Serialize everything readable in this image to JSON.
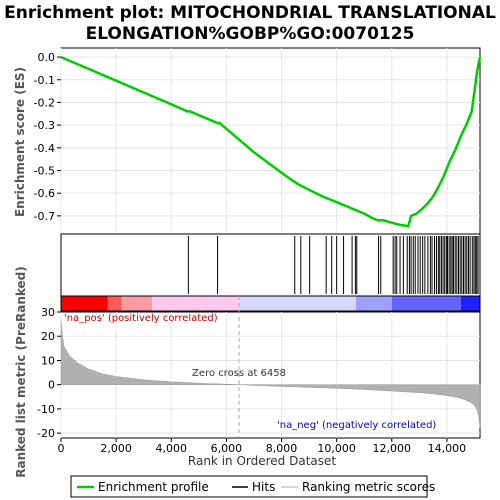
{
  "chart_data": {
    "type": "line",
    "title_line1": "Enrichment plot: MITOCHONDRIAL TRANSLATIONAL",
    "title_line2": "ELONGATION%GOBP%GO:0070125",
    "es_panel": {
      "ylabel": "Enrichment score (ES)",
      "ylim": [
        -0.78,
        0.04
      ],
      "yticks": [
        0.0,
        -0.1,
        -0.2,
        -0.3,
        -0.4,
        -0.5,
        -0.6,
        -0.7
      ],
      "ytick_labels": [
        "0.0",
        "-0.1",
        "-0.2",
        "-0.3",
        "-0.4",
        "-0.5",
        "-0.6",
        "-0.7"
      ],
      "series": [
        {
          "name": "Enrichment profile",
          "color": "#00cc00",
          "x": [
            0,
            1000,
            2000,
            3000,
            4000,
            4600,
            4650,
            5700,
            5750,
            7000,
            8000,
            8400,
            8600,
            9000,
            9500,
            10000,
            10500,
            10700,
            11000,
            11300,
            11500,
            11700,
            12000,
            12300,
            12600,
            12700,
            12900,
            13100,
            13300,
            13500,
            13700,
            13900,
            14100,
            14300,
            14500,
            14700,
            14900,
            15000,
            15100,
            15200
          ],
          "y": [
            0.0,
            -0.052,
            -0.104,
            -0.156,
            -0.208,
            -0.24,
            -0.238,
            -0.292,
            -0.29,
            -0.42,
            -0.51,
            -0.545,
            -0.56,
            -0.585,
            -0.615,
            -0.64,
            -0.665,
            -0.675,
            -0.69,
            -0.71,
            -0.72,
            -0.72,
            -0.73,
            -0.74,
            -0.745,
            -0.7,
            -0.69,
            -0.67,
            -0.645,
            -0.615,
            -0.57,
            -0.52,
            -0.46,
            -0.41,
            -0.35,
            -0.3,
            -0.24,
            -0.15,
            -0.06,
            0.0
          ]
        }
      ]
    },
    "hits": [
      4620,
      5680,
      8480,
      8700,
      9020,
      9620,
      9820,
      10000,
      10250,
      10560,
      10680,
      10730,
      11520,
      11600,
      12050,
      12120,
      12180,
      12300,
      12420,
      12560,
      12640,
      12700,
      12780,
      12850,
      12950,
      13030,
      13120,
      13200,
      13310,
      13400,
      13460,
      13550,
      13620,
      13690,
      13740,
      13800,
      13860,
      13920,
      13980,
      14020,
      14080,
      14140,
      14190,
      14240,
      14300,
      14360,
      14420,
      14480,
      14540,
      14600,
      14660,
      14720,
      14780,
      14840,
      14920,
      14980,
      15030,
      15080,
      15130
    ],
    "rank_panel": {
      "ylabel": "Ranked list metric (PreRanked)",
      "xlabel": "Rank in Ordered Dataset",
      "xlim": [
        0,
        15200
      ],
      "ylim": [
        -22,
        30
      ],
      "xticks": [
        0,
        2000,
        4000,
        6000,
        8000,
        10000,
        12000,
        14000
      ],
      "xtick_labels": [
        "0",
        "2,000",
        "4,000",
        "6,000",
        "8,000",
        "10,000",
        "12,000",
        "14,000"
      ],
      "yticks": [
        30,
        20,
        10,
        0,
        -10,
        -20
      ],
      "ytick_labels": [
        "30",
        "20",
        "10",
        "0",
        "-10",
        "-20"
      ],
      "zero_cross": 6458,
      "zero_cross_label": "Zero cross at 6458",
      "pos_label": "'na_pos' (positively correlated)",
      "neg_label": "'na_neg' (negatively correlated)",
      "metric_x": [
        0,
        100,
        300,
        600,
        1000,
        1500,
        2000,
        3000,
        4000,
        5000,
        6000,
        6458,
        7000,
        8000,
        9000,
        10000,
        11000,
        12000,
        13000,
        13500,
        14000,
        14400,
        14700,
        14900,
        15000,
        15100,
        15150,
        15200
      ],
      "metric_y": [
        26,
        16,
        12,
        9,
        6.5,
        4.5,
        3.4,
        2.0,
        1.2,
        0.6,
        0.2,
        0.0,
        -0.3,
        -0.7,
        -1.1,
        -1.5,
        -2.0,
        -2.6,
        -3.3,
        -3.8,
        -4.5,
        -5.3,
        -6.4,
        -7.6,
        -8.5,
        -10.5,
        -13,
        -18
      ]
    },
    "heatmap_colors": [
      "#ff0000",
      "#ff5a5a",
      "#ff9aa2",
      "#ffc8ec",
      "#d6d6ff",
      "#a0a0ff",
      "#6464ff",
      "#2020ff"
    ],
    "heatmap_bounds": [
      0,
      1700,
      2200,
      3300,
      6450,
      10700,
      12000,
      14500,
      15200
    ]
  },
  "legend": {
    "entries": [
      "Enrichment profile",
      "Hits",
      "Ranking metric scores"
    ]
  }
}
